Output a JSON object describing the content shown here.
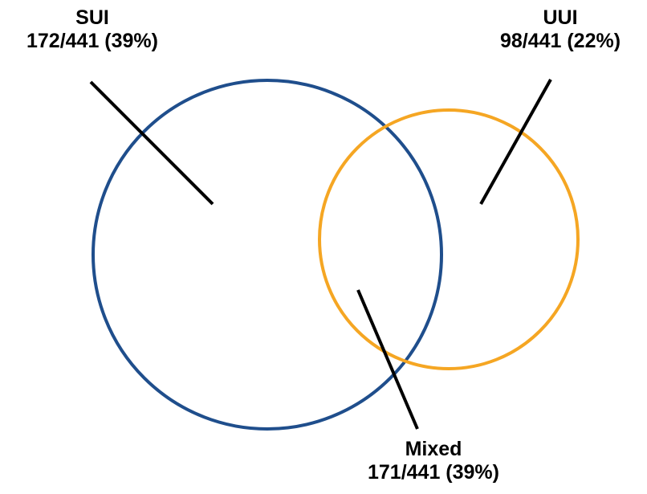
{
  "sets": [
    {
      "name": "SUI",
      "count": "172/441 (39%)",
      "color": "#1f4e8c"
    },
    {
      "name": "UUI",
      "count": "98/441 (22%)",
      "color": "#f5a623"
    }
  ],
  "intersection": {
    "name": "Mixed",
    "count": "171/441 (39%)"
  },
  "leader_line_color": "#000000"
}
